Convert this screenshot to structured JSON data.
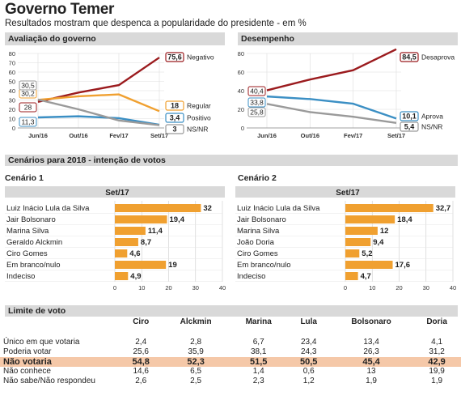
{
  "title": "Governo Temer",
  "subtitle": "Resultados mostram que despenca a popularidade do presidente - em %",
  "colors": {
    "dark_red": "#9b1b1e",
    "orange": "#f0a030",
    "blue": "#3b8fc4",
    "gray": "#9a9a9a",
    "highlight": "#f5c8a8",
    "header_bg": "#d9d9d9"
  },
  "sections": {
    "avaliacao": "Avaliação do governo",
    "desempenho": "Desempenho",
    "cenarios": "Cenários para 2018 - intenção de votos",
    "limite": "Limite de voto"
  },
  "chart_data": [
    {
      "type": "line",
      "title": "Avaliação do governo",
      "categories": [
        "Jun/16",
        "Out/16",
        "Fev/17",
        "Set/17"
      ],
      "ylim": [
        0,
        80
      ],
      "yticks": [
        0,
        10,
        20,
        30,
        40,
        50,
        60,
        70,
        80
      ],
      "series": [
        {
          "name": "Negativo",
          "color": "#9b1b1e",
          "values": [
            28,
            38,
            46,
            75.6
          ],
          "start_label": "28",
          "end_label": "75,6"
        },
        {
          "name": "Regular",
          "color": "#f0a030",
          "values": [
            30.2,
            34,
            36,
            18
          ],
          "start_label": "30,2",
          "end_label": "18"
        },
        {
          "name": "Positivo",
          "color": "#3b8fc4",
          "values": [
            11.3,
            12.5,
            10.5,
            3.4
          ],
          "start_label": "11,3",
          "end_label": "3,4"
        },
        {
          "name": "NS/NR",
          "color": "#9a9a9a",
          "values": [
            30.5,
            20,
            8,
            3
          ],
          "start_label": "30,5",
          "end_label": "3"
        }
      ]
    },
    {
      "type": "line",
      "title": "Desempenho",
      "categories": [
        "Jun/16",
        "Out/16",
        "Fev/17",
        "Set/17"
      ],
      "ylim": [
        0,
        80
      ],
      "yticks": [
        0,
        20,
        40,
        60,
        80
      ],
      "series": [
        {
          "name": "Desaprova",
          "color": "#9b1b1e",
          "values": [
            40.4,
            52,
            62,
            84.5
          ],
          "start_label": "40,4",
          "end_label": "84,5"
        },
        {
          "name": "Aprova",
          "color": "#3b8fc4",
          "values": [
            33.8,
            31,
            26,
            10.1
          ],
          "start_label": "33,8",
          "end_label": "10,1"
        },
        {
          "name": "NS/NR",
          "color": "#9a9a9a",
          "values": [
            25.8,
            17,
            12,
            5.4
          ],
          "start_label": "25,8",
          "end_label": "5,4"
        }
      ]
    },
    {
      "type": "bar",
      "title": "Cenário 1",
      "period": "Set/17",
      "categories": [
        "Luiz Inácio Lula da Silva",
        "Jair Bolsonaro",
        "Marina Silva",
        "Geraldo Alckmin",
        "Ciro Gomes",
        "Em branco/nulo",
        "Indeciso"
      ],
      "values": [
        32,
        19.4,
        11.4,
        8.7,
        4.6,
        19,
        4.9
      ],
      "labels": [
        "32",
        "19,4",
        "11,4",
        "8,7",
        "4,6",
        "19",
        "4,9"
      ],
      "xlim": [
        0,
        40
      ],
      "xticks": [
        0,
        10,
        20,
        30,
        40
      ]
    },
    {
      "type": "bar",
      "title": "Cenário 2",
      "period": "Set/17",
      "categories": [
        "Luiz Inácio Lula da Silva",
        "Jair Bolsonaro",
        "Marina Silva",
        "João Doria",
        "Ciro Gomes",
        "Em branco/nulo",
        "Indeciso"
      ],
      "values": [
        32.7,
        18.4,
        12,
        9.4,
        5.2,
        17.6,
        4.7
      ],
      "labels": [
        "32,7",
        "18,4",
        "12",
        "9,4",
        "5,2",
        "17,6",
        "4,7"
      ],
      "xlim": [
        0,
        40
      ],
      "xticks": [
        0,
        10,
        20,
        30,
        40
      ]
    },
    {
      "type": "table",
      "title": "Limite de voto",
      "columns": [
        "Ciro",
        "Alckmin",
        "Marina",
        "Lula",
        "Bolsonaro",
        "Doria"
      ],
      "rows": [
        {
          "label": "Único em que votaria",
          "values": [
            "2,4",
            "2,8",
            "6,7",
            "23,4",
            "13,4",
            "4,1"
          ]
        },
        {
          "label": "Poderia votar",
          "values": [
            "25,6",
            "35,9",
            "38,1",
            "24,3",
            "26,3",
            "31,2"
          ]
        },
        {
          "label": "Não votaria",
          "values": [
            "54,8",
            "52,3",
            "51,5",
            "50,5",
            "45,4",
            "42,9"
          ],
          "highlight": true
        },
        {
          "label": "Não conhece",
          "values": [
            "14,6",
            "6,5",
            "1,4",
            "0,6",
            "13",
            "19,9"
          ]
        },
        {
          "label": "Não sabe/Não respondeu",
          "values": [
            "2,6",
            "2,5",
            "2,3",
            "1,2",
            "1,9",
            "1,9"
          ]
        }
      ]
    }
  ]
}
